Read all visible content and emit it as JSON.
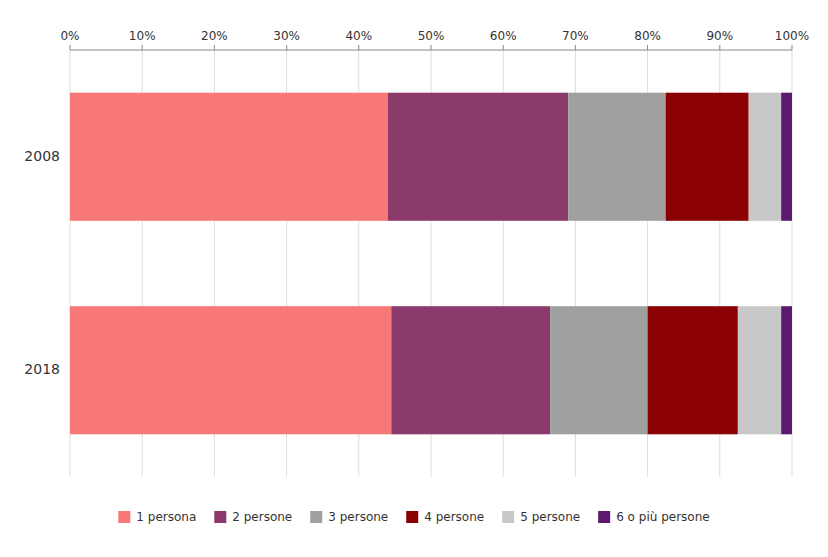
{
  "chart_data": {
    "type": "bar",
    "orientation": "horizontal",
    "stacked": true,
    "categories": [
      "2008",
      "2018"
    ],
    "series": [
      {
        "name": "1 persona",
        "color": "#F87878",
        "values": [
          44.0,
          44.5
        ]
      },
      {
        "name": "2 persone",
        "color": "#8B3A6B",
        "values": [
          25.0,
          22.0
        ]
      },
      {
        "name": "3 persone",
        "color": "#A0A0A0",
        "values": [
          13.5,
          13.5
        ]
      },
      {
        "name": "4 persone",
        "color": "#8B0000",
        "values": [
          11.5,
          12.5
        ]
      },
      {
        "name": "5 persone",
        "color": "#C8C8C8",
        "values": [
          4.5,
          6.0
        ]
      },
      {
        "name": "6 o più persone",
        "color": "#5C1A6E",
        "values": [
          1.5,
          1.5
        ]
      }
    ],
    "xlim": [
      0,
      100
    ],
    "xticks": [
      {
        "value": 0,
        "label": "0%"
      },
      {
        "value": 10,
        "label": "10%"
      },
      {
        "value": 20,
        "label": "20%"
      },
      {
        "value": 30,
        "label": "30%"
      },
      {
        "value": 40,
        "label": "40%"
      },
      {
        "value": 50,
        "label": "50%"
      },
      {
        "value": 60,
        "label": "60%"
      },
      {
        "value": 70,
        "label": "70%"
      },
      {
        "value": 80,
        "label": "80%"
      },
      {
        "value": 90,
        "label": "90%"
      },
      {
        "value": 100,
        "label": "100%"
      }
    ],
    "grid": true,
    "legend": "bottom"
  }
}
